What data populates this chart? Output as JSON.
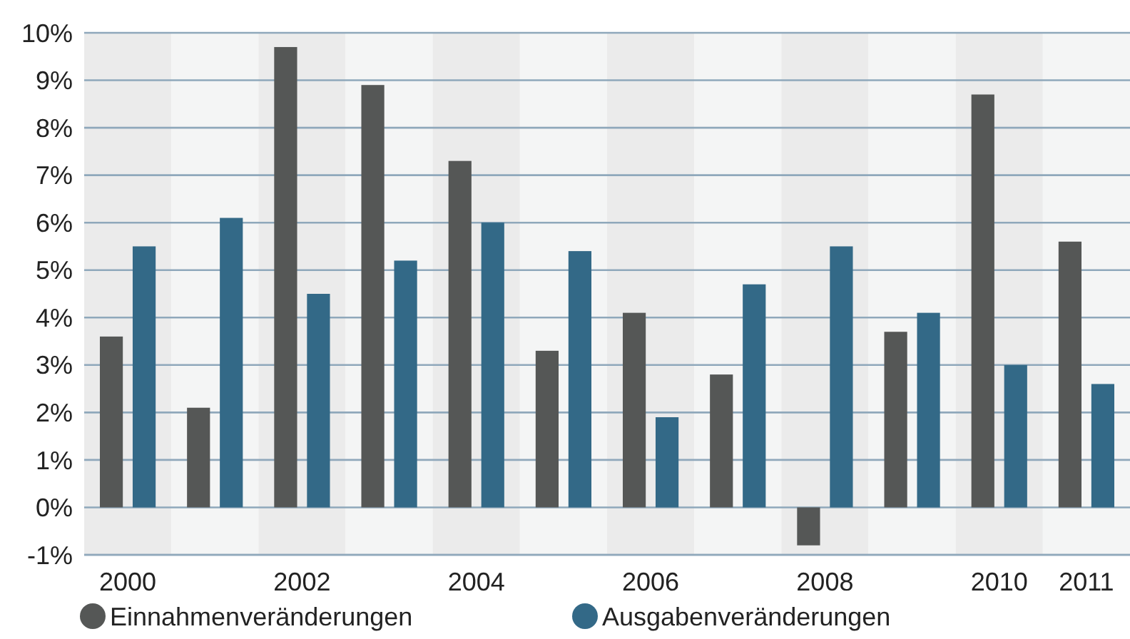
{
  "chart_data": {
    "type": "bar",
    "categories": [
      "2000",
      null,
      "2002",
      null,
      "2004",
      null,
      "2006",
      null,
      "2008",
      null,
      "2010",
      "2011"
    ],
    "series": [
      {
        "name": "Einnahmenveränderungen",
        "color": "#555756",
        "values": [
          3.6,
          2.1,
          9.7,
          8.9,
          7.3,
          3.3,
          4.1,
          2.8,
          -0.8,
          3.7,
          8.7,
          5.6
        ]
      },
      {
        "name": "Ausgabenveränderungen",
        "color": "#336987",
        "values": [
          5.5,
          6.1,
          4.5,
          5.2,
          6.0,
          5.4,
          1.9,
          4.7,
          5.5,
          4.1,
          3.0,
          2.6
        ]
      }
    ],
    "ylim": [
      -1,
      10
    ],
    "yticks": [
      {
        "value": -1,
        "label": "-1%"
      },
      {
        "value": 0,
        "label": "0%"
      },
      {
        "value": 1,
        "label": "1%"
      },
      {
        "value": 2,
        "label": "2%"
      },
      {
        "value": 3,
        "label": "3%"
      },
      {
        "value": 4,
        "label": "4%"
      },
      {
        "value": 5,
        "label": "5%"
      },
      {
        "value": 6,
        "label": "6%"
      },
      {
        "value": 7,
        "label": "7%"
      },
      {
        "value": 8,
        "label": "8%"
      },
      {
        "value": 9,
        "label": "9%"
      },
      {
        "value": 10,
        "label": "10%"
      }
    ],
    "grid": "y",
    "legend": "bottom left"
  }
}
